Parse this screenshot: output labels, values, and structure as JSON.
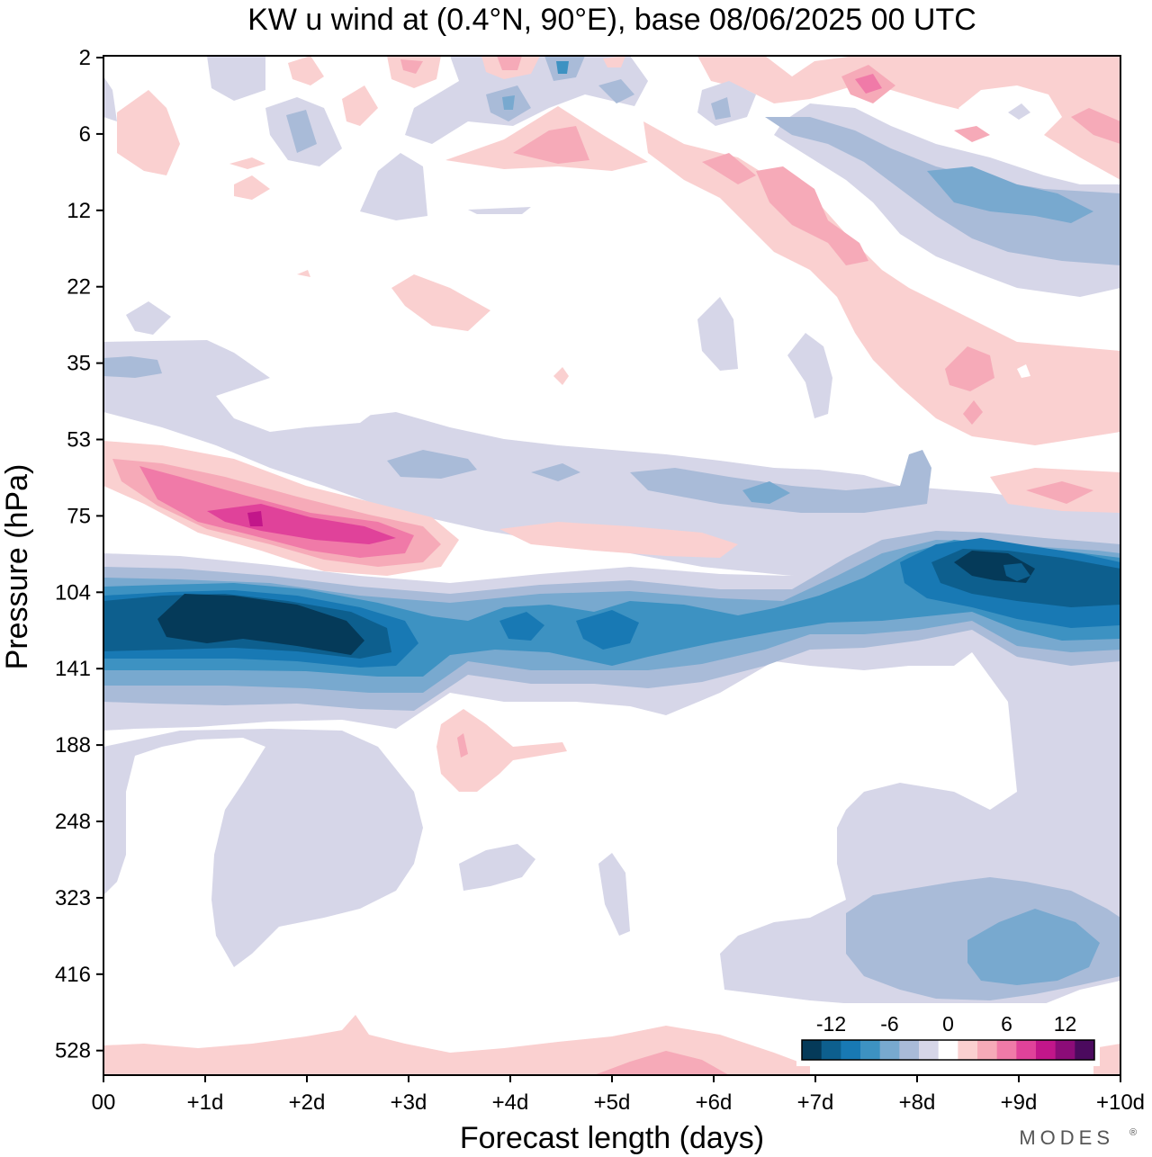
{
  "chart_data": {
    "type": "contour",
    "title": "KW u wind at (0.4°N, 90°E),  base 08/06/2025  00 UTC",
    "xlabel": "Forecast length (days)",
    "ylabel": "Pressure (hPa)",
    "x_ticks": [
      "00",
      "+1d",
      "+2d",
      "+3d",
      "+4d",
      "+5d",
      "+6d",
      "+7d",
      "+8d",
      "+9d",
      "+10d"
    ],
    "xlim": [
      0,
      10
    ],
    "y_ticks": [
      "2",
      "6",
      "12",
      "22",
      "35",
      "53",
      "75",
      "104",
      "141",
      "188",
      "248",
      "323",
      "416",
      "528"
    ],
    "grid": false,
    "colorbar": {
      "placement": "bottom-right",
      "tick_labels": [
        "-12",
        "-6",
        "0",
        "6",
        "12"
      ],
      "levels": [
        -14,
        -12,
        -10,
        -8,
        -6,
        -4,
        -2,
        0,
        2,
        4,
        6,
        8,
        10,
        12,
        14
      ],
      "colors": [
        "#053a59",
        "#0d5f8e",
        "#1879b4",
        "#3d92c2",
        "#78a9cf",
        "#a9bbd8",
        "#d6d6e8",
        "#ffffff",
        "#fad0d0",
        "#f6aab8",
        "#f07aa8",
        "#e0429a",
        "#c2168a",
        "#8c0c78",
        "#4b0a5e"
      ]
    },
    "features": [
      {
        "name": "upper-tropospheric easterly jet core",
        "x_days": [
          0.5,
          2.8
        ],
        "pressure_hPa": [
          110,
          135
        ],
        "u_ms": -14
      },
      {
        "name": "easterly jet secondary core",
        "x_days": [
          8.7,
          9.3
        ],
        "pressure_hPa": [
          95,
          110
        ],
        "u_ms": -14
      },
      {
        "name": "westerly maximum",
        "x_days": [
          1.0,
          3.0
        ],
        "pressure_hPa": [
          60,
          85
        ],
        "u_ms": 12
      },
      {
        "name": "mid-tropospheric easterlies",
        "x_days": [
          8.5,
          10
        ],
        "pressure_hPa": [
          323,
          470
        ],
        "u_ms": -8
      }
    ]
  },
  "branding": {
    "text": "MODES",
    "mark": "®"
  },
  "colors": {
    "easterly_max": "#053a59",
    "westerly_max": "#4b0a5e",
    "background": "#ffffff"
  }
}
